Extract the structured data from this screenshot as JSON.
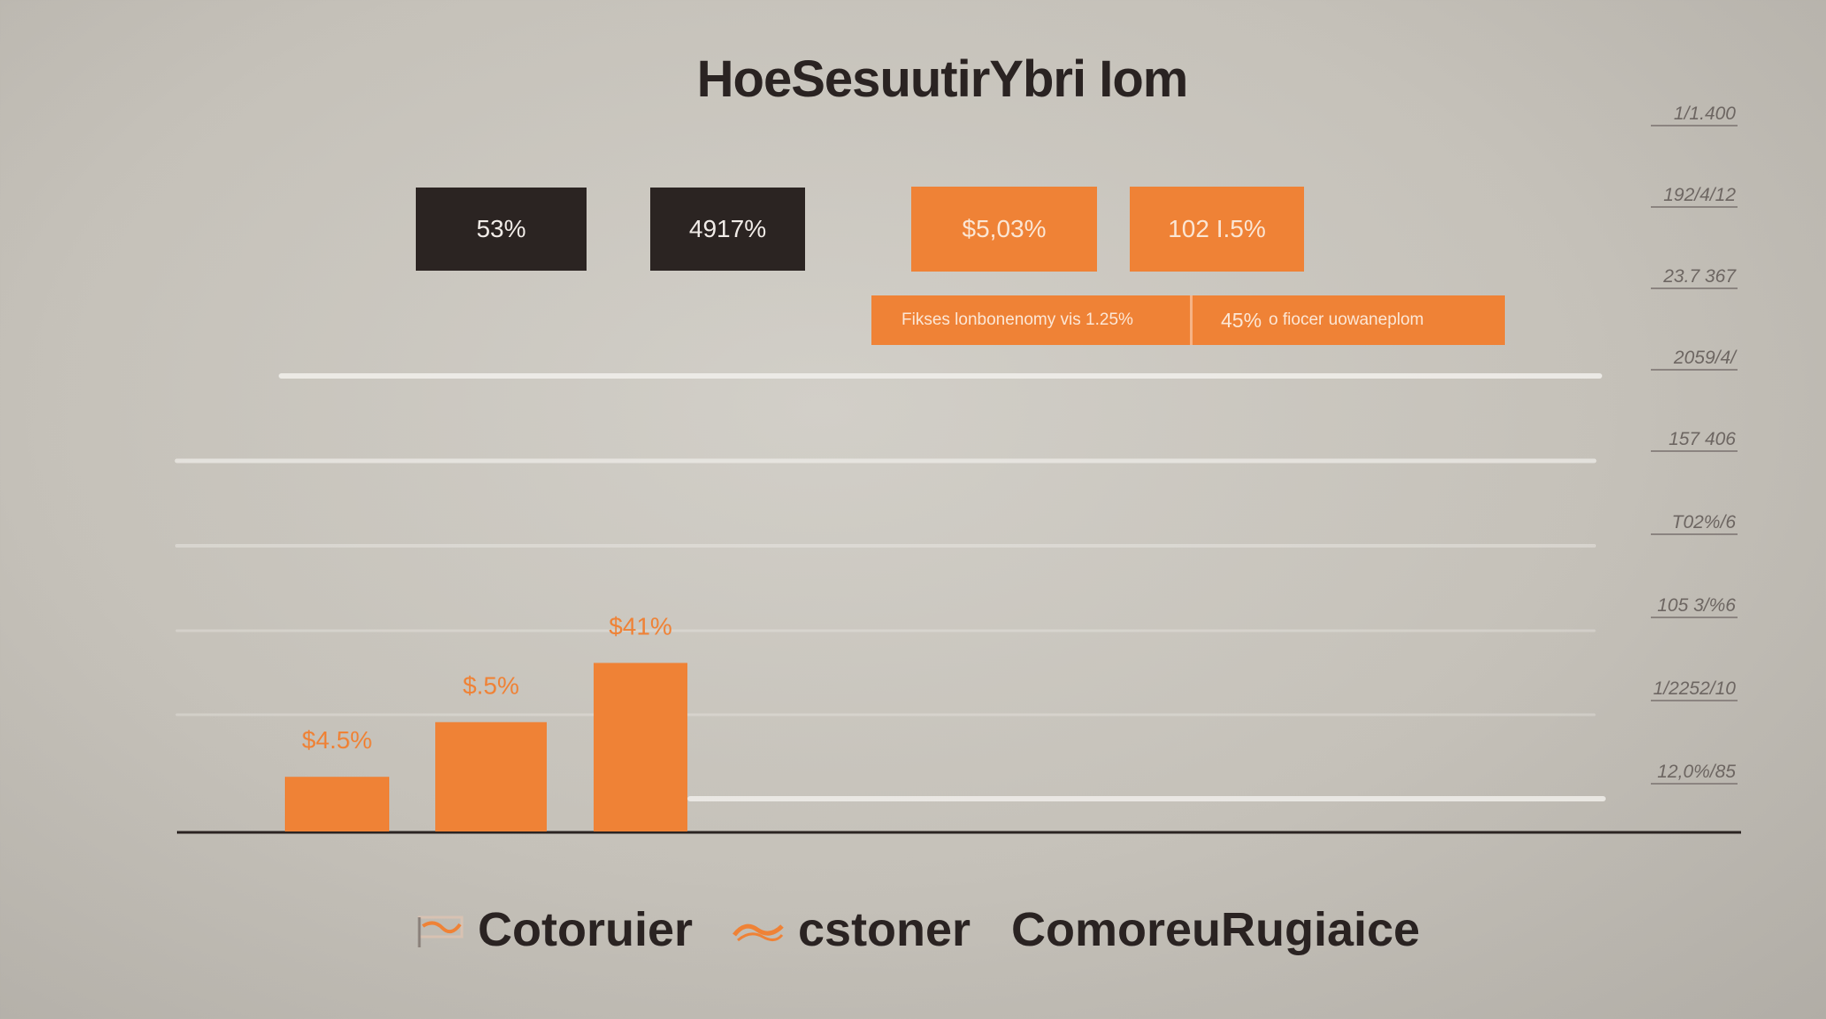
{
  "title": "HoeSesuutirYbri Iom",
  "kpis": [
    {
      "label": "53%",
      "style": "dark"
    },
    {
      "label": "4917%",
      "style": "dark"
    },
    {
      "label": "$5,03%",
      "style": "orange"
    },
    {
      "label": "102 I.5%",
      "style": "orange"
    }
  ],
  "banners": [
    {
      "text": "Fikses lonbonenomy vis 1.25%"
    },
    {
      "lead": "45%",
      "text": "o fiocer uowaneplom"
    }
  ],
  "colors": {
    "bar": "#ef8236",
    "bar_label": "#ef8236",
    "text_dark": "#2a2322",
    "gridline": "#eeece8",
    "axis": "#2b2422"
  },
  "chart_data": {
    "type": "bar",
    "title": "HoeSesuutirYbri Iom",
    "xlabel": "",
    "ylabel": "",
    "ylim": [
      0,
      1
    ],
    "grid": true,
    "legend_position": "bottom",
    "series": [
      {
        "values": [
          0.12,
          0.24,
          0.37
        ],
        "labels": [
          "$4.5%",
          "$.5%",
          "$41%"
        ]
      }
    ],
    "right_tick_labels": [
      "1/1.400",
      "192/4/12",
      "23.7 367",
      "2059/4/",
      "157 406",
      "T02%/6",
      "105 3/%6",
      "1/2252/10",
      "12,0%/85"
    ]
  },
  "legend": [
    {
      "label": "Cotoruier",
      "icon": "flag-icon"
    },
    {
      "label": "cstoner",
      "icon": "wave-icon"
    },
    {
      "label": "ComoreuRugiaice",
      "icon": ""
    }
  ]
}
